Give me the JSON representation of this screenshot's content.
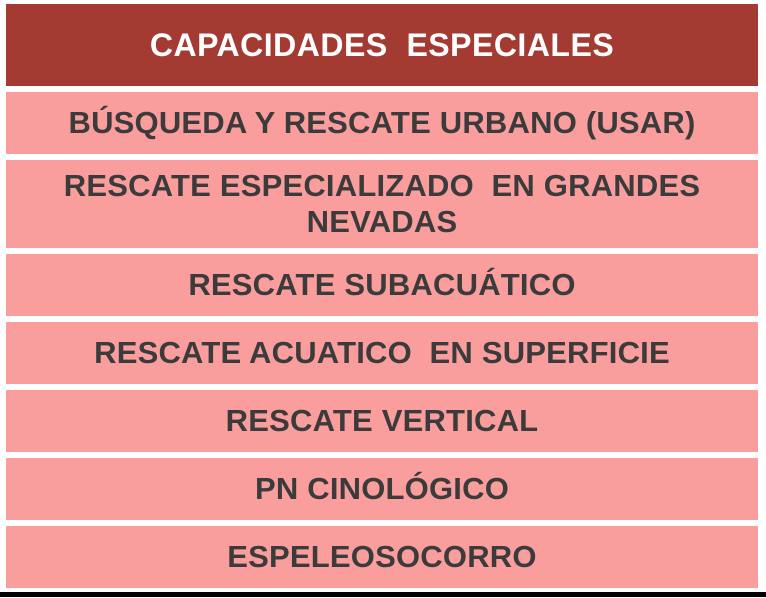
{
  "chart_data": {
    "type": "table",
    "title": "CAPACIDADES  ESPECIALES",
    "columns": [
      "CAPACIDADES ESPECIALES"
    ],
    "rows": [
      [
        "BÚSQUEDA Y RESCATE URBANO (USAR)"
      ],
      [
        "RESCATE ESPECIALIZADO  EN GRANDES NEVADAS"
      ],
      [
        "RESCATE SUBACUÁTICO"
      ],
      [
        "RESCATE ACUATICO  EN SUPERFICIE"
      ],
      [
        "RESCATE VERTICAL"
      ],
      [
        "PN CINOLÓGICO"
      ],
      [
        "ESPELEOSOCORRO"
      ]
    ],
    "legend_position": "none",
    "grid": false
  },
  "table": {
    "header_label": "CAPACIDADES  ESPECIALES",
    "rows": [
      {
        "label": "BÚSQUEDA Y RESCATE URBANO (USAR)"
      },
      {
        "label": "RESCATE ESPECIALIZADO  EN GRANDES NEVADAS"
      },
      {
        "label": "RESCATE SUBACUÁTICO"
      },
      {
        "label": "RESCATE ACUATICO  EN SUPERFICIE"
      },
      {
        "label": "RESCATE VERTICAL"
      },
      {
        "label": "PN CINOLÓGICO"
      },
      {
        "label": "ESPELEOSOCORRO"
      }
    ]
  },
  "colors": {
    "header_background": "#A33B33",
    "header_text": "#FFFFFF",
    "row_background": "#FA9D9D",
    "row_text": "#3B3B3B",
    "page_background": "#FFFFFF",
    "row_separator": "#FFFFFF",
    "bottom_bar": "#000000"
  }
}
